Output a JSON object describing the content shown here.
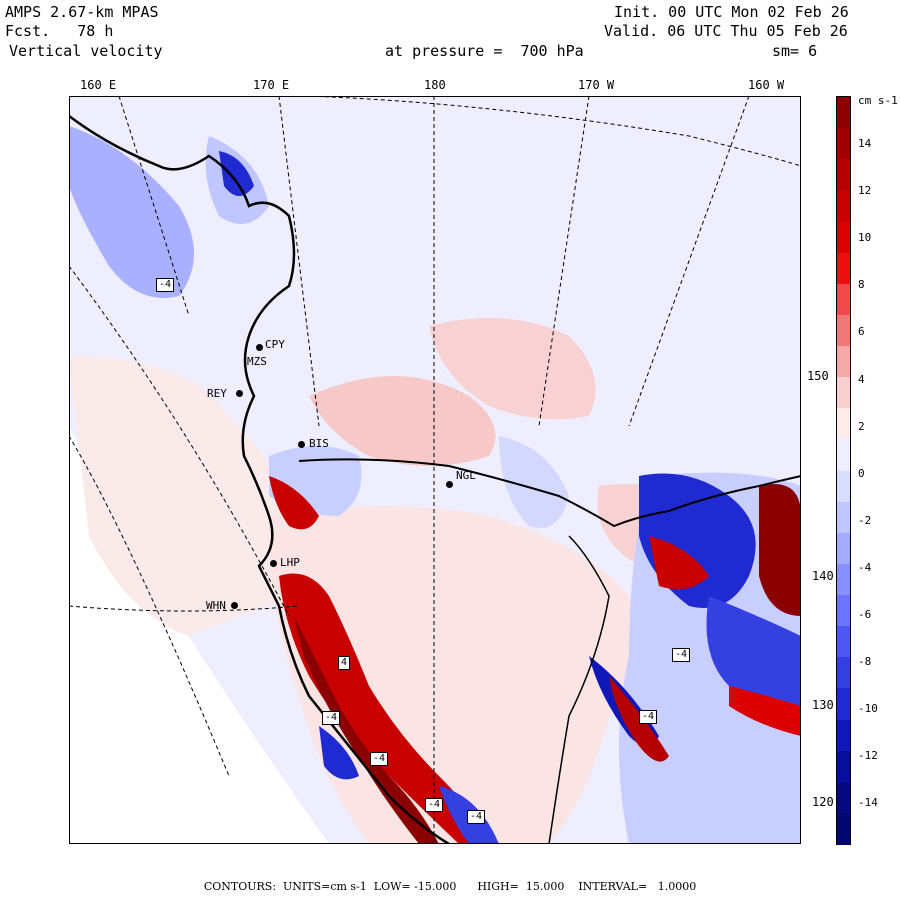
{
  "header": {
    "model": "AMPS 2.67-km MPAS",
    "fcst": "Fcst.   78 h",
    "variable": "Vertical velocity",
    "init": "Init. 00 UTC Mon 02 Feb 26",
    "valid": "Valid. 06 UTC Thu 05 Feb 26",
    "pressure": "at pressure =  700 hPa",
    "smooth": "sm= 6"
  },
  "axis": {
    "top": [
      "160 E",
      "170 E",
      "180",
      "170 W",
      "160 W"
    ],
    "right": [
      "150 W",
      "140 W",
      "130 W",
      "120 W"
    ]
  },
  "colorbar": {
    "units": "cm s-1",
    "labels": [
      "14",
      "12",
      "10",
      "8",
      "6",
      "4",
      "2",
      "0",
      "-2",
      "-4",
      "-6",
      "-8",
      "-10",
      "-12",
      "-14"
    ],
    "colors": [
      "#8b0000",
      "#a00000",
      "#b40000",
      "#c80000",
      "#dc0000",
      "#ee1010",
      "#f04a4a",
      "#f07878",
      "#f4a8a8",
      "#f8d0d0",
      "#fdeaea",
      "#eeeeff",
      "#d8dcff",
      "#c0c6ff",
      "#a3aaff",
      "#8890ff",
      "#6c75ff",
      "#4f57f2",
      "#3540e0",
      "#1f2ad0",
      "#1018b8",
      "#080e9c",
      "#050a80",
      "#030770"
    ]
  },
  "stations": [
    {
      "id": "CPY",
      "label": "CPY"
    },
    {
      "id": "MZS",
      "label": "MZS"
    },
    {
      "id": "REY",
      "label": "REY"
    },
    {
      "id": "BIS",
      "label": "BIS"
    },
    {
      "id": "NGL",
      "label": "NGL"
    },
    {
      "id": "LHP",
      "label": "LHP"
    },
    {
      "id": "WHN",
      "label": "WHN"
    }
  ],
  "markers": [
    "-4",
    "-4",
    "-4",
    "-4",
    "4",
    "-4",
    "-4",
    "-4"
  ],
  "footer": "CONTOURS:  UNITS=cm s-1  LOW= -15.000      HIGH=  15.000    INTERVAL=   1.0000",
  "colors": {
    "land_shade": "#ececf0",
    "outside": "#ffffff"
  }
}
